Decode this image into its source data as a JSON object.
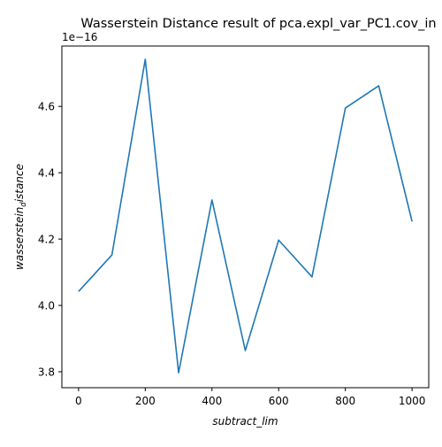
{
  "chart_data": {
    "type": "line",
    "title": "Wasserstein Distance result of pca.expl_var_PC1.cov_in",
    "xlabel": "subtract_lim",
    "ylabel": "wasserstein_distance",
    "ylabel_display_main": "wasserstein",
    "ylabel_display_sub": "d",
    "ylabel_display_tail": "istance",
    "y_offset_text": "1e−16",
    "y_scale_exponent": -16,
    "xlim": [
      -50,
      1050
    ],
    "ylim": [
      3.752,
      4.782
    ],
    "x_ticks": [
      0,
      200,
      400,
      600,
      800,
      1000
    ],
    "x_tick_labels": [
      "0",
      "200",
      "400",
      "600",
      "800",
      "1000"
    ],
    "y_ticks": [
      3.8,
      4.0,
      4.2,
      4.4,
      4.6
    ],
    "y_tick_labels": [
      "3.8",
      "4.0",
      "4.2",
      "4.4",
      "4.6"
    ],
    "grid": false,
    "series": [
      {
        "color": "#1f77b4",
        "x": [
          0,
          100,
          200,
          300,
          400,
          500,
          600,
          700,
          800,
          900,
          1000
        ],
        "values": [
          4.042,
          4.152,
          4.742,
          3.797,
          4.318,
          3.864,
          4.197,
          4.086,
          4.595,
          4.662,
          4.253
        ]
      }
    ]
  }
}
